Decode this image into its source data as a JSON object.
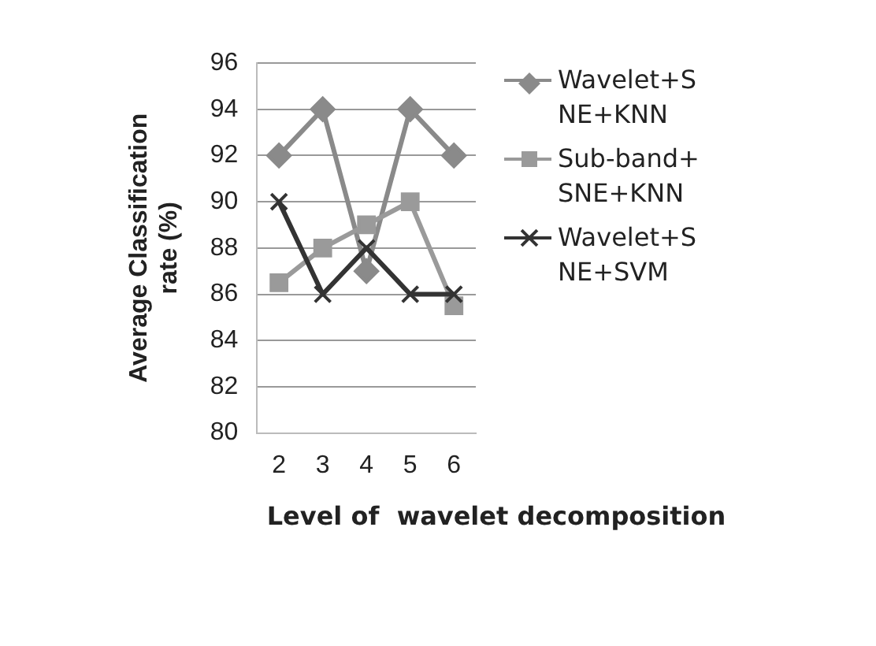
{
  "chart_data": {
    "type": "line",
    "ylabel": "Average Classification rate (%)",
    "xlabel": "Level of  wavelet decomposition",
    "categories": [
      "2",
      "3",
      "4",
      "5",
      "6"
    ],
    "series": [
      {
        "name": "Wavelet+SNE+KNN",
        "color": "#8a8a8a",
        "marker": "diamond",
        "values": [
          92,
          94,
          87,
          94,
          92
        ]
      },
      {
        "name": "Sub-band+SNE+KNN",
        "color": "#9a9a9a",
        "marker": "square",
        "values": [
          86.5,
          88,
          89,
          90,
          85.5
        ]
      },
      {
        "name": "Wavelet+SNE+SVM",
        "color": "#333333",
        "marker": "cross",
        "values": [
          90,
          86,
          88,
          86,
          86
        ]
      }
    ],
    "ylim": [
      80,
      96
    ],
    "yticks": [
      80,
      82,
      84,
      86,
      88,
      90,
      92,
      94,
      96
    ],
    "grid": "y",
    "legend": "right"
  }
}
